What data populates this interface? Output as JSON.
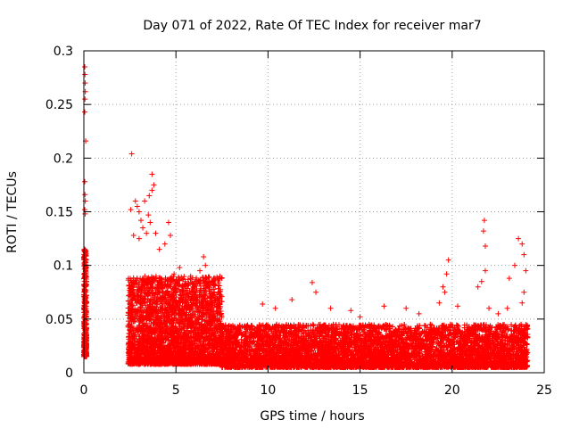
{
  "chart_data": {
    "type": "scatter",
    "title": "Day 071 of 2022, Rate Of TEC Index for receiver mar7",
    "xlabel": "GPS time / hours",
    "ylabel": "ROTI / TECUs",
    "xlim": [
      0,
      25
    ],
    "ylim": [
      0,
      0.3
    ],
    "x_ticks": [
      0,
      5,
      10,
      15,
      20,
      25
    ],
    "x_tick_labels": [
      "0",
      "5",
      "10",
      "15",
      "20",
      "25"
    ],
    "y_ticks": [
      0,
      0.05,
      0.1,
      0.15,
      0.2,
      0.25,
      0.3
    ],
    "y_tick_labels": [
      "0",
      "0.05",
      "0.1",
      "0.15",
      "0.2",
      "0.25",
      "0.3"
    ],
    "grid": true,
    "marker": "+",
    "series_color": "#ff0000",
    "series": [
      {
        "name": "ROTI",
        "points": [
          [
            0.05,
            0.285
          ],
          [
            0.06,
            0.278
          ],
          [
            0.07,
            0.27
          ],
          [
            0.08,
            0.262
          ],
          [
            0.06,
            0.255
          ],
          [
            0.05,
            0.243
          ],
          [
            0.1,
            0.216
          ],
          [
            0.05,
            0.178
          ],
          [
            0.06,
            0.166
          ],
          [
            0.08,
            0.16
          ],
          [
            0.05,
            0.152
          ],
          [
            0.07,
            0.148
          ],
          [
            0.05,
            0.115
          ],
          [
            0.08,
            0.11
          ],
          [
            0.06,
            0.1
          ],
          [
            0.1,
            0.09
          ],
          [
            0.12,
            0.085
          ],
          [
            0.07,
            0.08
          ],
          [
            0.1,
            0.07
          ],
          [
            0.05,
            0.06
          ],
          [
            0.12,
            0.055
          ],
          [
            0.08,
            0.045
          ],
          [
            0.1,
            0.04
          ],
          [
            0.06,
            0.035
          ],
          [
            0.1,
            0.03
          ],
          [
            0.05,
            0.027
          ],
          [
            0.08,
            0.024
          ],
          [
            0.12,
            0.02
          ],
          [
            0.14,
            0.018
          ],
          [
            0.06,
            0.016
          ],
          [
            2.6,
            0.204
          ],
          [
            2.55,
            0.152
          ],
          [
            2.8,
            0.16
          ],
          [
            2.9,
            0.155
          ],
          [
            3.0,
            0.15
          ],
          [
            3.1,
            0.142
          ],
          [
            3.3,
            0.16
          ],
          [
            3.55,
            0.165
          ],
          [
            3.7,
            0.185
          ],
          [
            3.8,
            0.175
          ],
          [
            3.7,
            0.17
          ],
          [
            3.5,
            0.147
          ],
          [
            3.6,
            0.14
          ],
          [
            3.2,
            0.135
          ],
          [
            2.7,
            0.128
          ],
          [
            3.0,
            0.125
          ],
          [
            3.4,
            0.13
          ],
          [
            3.9,
            0.13
          ],
          [
            4.6,
            0.14
          ],
          [
            4.7,
            0.128
          ],
          [
            4.4,
            0.12
          ],
          [
            4.1,
            0.115
          ],
          [
            6.5,
            0.108
          ],
          [
            6.6,
            0.1
          ],
          [
            6.3,
            0.095
          ],
          [
            5.8,
            0.09
          ],
          [
            7.1,
            0.082
          ],
          [
            7.3,
            0.075
          ],
          [
            5.2,
            0.098
          ],
          [
            4.9,
            0.092
          ],
          [
            5.5,
            0.085
          ],
          [
            6.0,
            0.08
          ],
          [
            9.7,
            0.064
          ],
          [
            10.4,
            0.06
          ],
          [
            12.4,
            0.084
          ],
          [
            12.6,
            0.075
          ],
          [
            11.3,
            0.068
          ],
          [
            13.4,
            0.06
          ],
          [
            14.5,
            0.058
          ],
          [
            15.0,
            0.052
          ],
          [
            16.3,
            0.062
          ],
          [
            17.5,
            0.06
          ],
          [
            18.2,
            0.055
          ],
          [
            19.3,
            0.065
          ],
          [
            19.5,
            0.08
          ],
          [
            19.6,
            0.075
          ],
          [
            19.7,
            0.092
          ],
          [
            19.8,
            0.105
          ],
          [
            20.3,
            0.062
          ],
          [
            21.4,
            0.08
          ],
          [
            21.6,
            0.085
          ],
          [
            21.75,
            0.142
          ],
          [
            21.7,
            0.132
          ],
          [
            21.8,
            0.118
          ],
          [
            21.8,
            0.095
          ],
          [
            23.1,
            0.088
          ],
          [
            23.4,
            0.1
          ],
          [
            23.6,
            0.125
          ],
          [
            23.8,
            0.12
          ],
          [
            23.9,
            0.11
          ],
          [
            24.0,
            0.095
          ],
          [
            23.9,
            0.075
          ],
          [
            23.8,
            0.065
          ],
          [
            22.0,
            0.06
          ],
          [
            22.5,
            0.055
          ],
          [
            23.0,
            0.06
          ]
        ]
      }
    ],
    "dense_bands": [
      {
        "x_range": [
          0.0,
          0.15
        ],
        "y_range": [
          0.015,
          0.115
        ],
        "note": "dense cloud near start"
      },
      {
        "x_range": [
          2.4,
          7.5
        ],
        "y_range": [
          0.008,
          0.09
        ],
        "note": "elevated dense cloud after 2.4 h"
      },
      {
        "x_range": [
          7.5,
          24.1
        ],
        "y_range": [
          0.005,
          0.045
        ],
        "note": "dense baseline band"
      }
    ]
  }
}
